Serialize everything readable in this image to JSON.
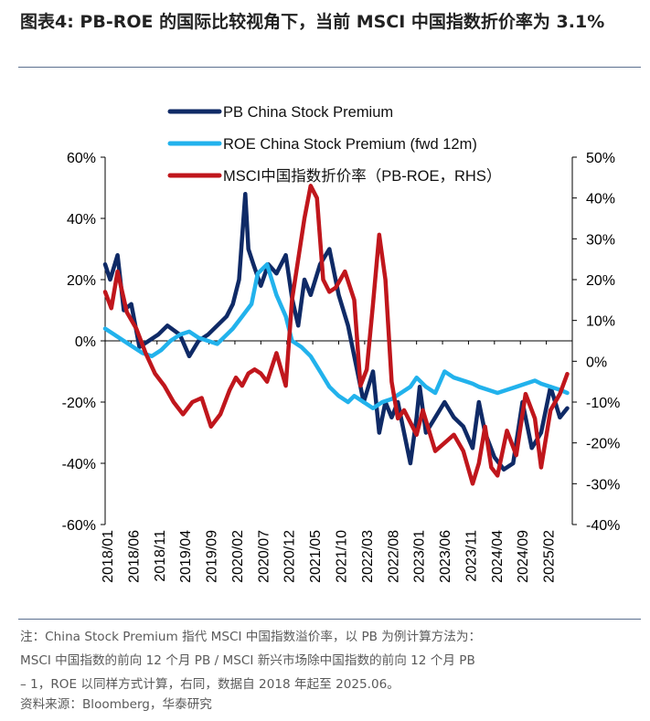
{
  "header": {
    "title": "图表4: PB-ROE 的国际比较视角下，当前 MSCI 中国指数折价率为 3.1%"
  },
  "chart_data": {
    "type": "line",
    "title": "",
    "x_tick_labels": [
      "2018/01",
      "2018/06",
      "2018/11",
      "2019/04",
      "2019/09",
      "2020/02",
      "2020/07",
      "2020/12",
      "2021/05",
      "2021/10",
      "2022/03",
      "2022/08",
      "2023/01",
      "2023/06",
      "2023/11",
      "2024/04",
      "2024/09",
      "2025/02"
    ],
    "x_range": [
      2018.0,
      2025.5
    ],
    "y_left": {
      "min": -60,
      "max": 60,
      "step": 20,
      "tick_labels": [
        "60%",
        "40%",
        "20%",
        "0%",
        "-20%",
        "-40%",
        "-60%"
      ]
    },
    "y_right": {
      "min": -40,
      "max": 50,
      "step": 10,
      "tick_labels": [
        "50%",
        "40%",
        "30%",
        "20%",
        "10%",
        "0%",
        "-10%",
        "-20%",
        "-30%",
        "-40%"
      ]
    },
    "legend_position": "top-left",
    "series": [
      {
        "name": "PB China Stock Premium",
        "axis": "left",
        "color": "#0f2a66",
        "x": [
          2018.0,
          2018.08,
          2018.2,
          2018.3,
          2018.42,
          2018.55,
          2018.7,
          2018.85,
          2019.0,
          2019.2,
          2019.35,
          2019.5,
          2019.65,
          2019.8,
          2019.95,
          2020.05,
          2020.15,
          2020.25,
          2020.3,
          2020.38,
          2020.5,
          2020.62,
          2020.75,
          2020.9,
          2021.0,
          2021.1,
          2021.2,
          2021.3,
          2021.45,
          2021.6,
          2021.75,
          2021.9,
          2022.0,
          2022.15,
          2022.3,
          2022.4,
          2022.5,
          2022.6,
          2022.7,
          2022.8,
          2022.9,
          2023.0,
          2023.05,
          2023.15,
          2023.3,
          2023.45,
          2023.6,
          2023.75,
          2023.9,
          2024.0,
          2024.1,
          2024.25,
          2024.4,
          2024.55,
          2024.7,
          2024.85,
          2025.0,
          2025.15,
          2025.3,
          2025.42
        ],
        "y": [
          25,
          20,
          28,
          10,
          12,
          -2,
          0,
          2,
          5,
          2,
          -5,
          0,
          2,
          5,
          8,
          12,
          20,
          48,
          30,
          25,
          18,
          25,
          22,
          28,
          14,
          5,
          20,
          15,
          25,
          30,
          15,
          5,
          -5,
          -20,
          -10,
          -30,
          -20,
          -25,
          -20,
          -30,
          -40,
          -25,
          -15,
          -30,
          -25,
          -20,
          -25,
          -28,
          -35,
          -20,
          -30,
          -38,
          -42,
          -40,
          -20,
          -35,
          -30,
          -15,
          -25,
          -22
        ]
      },
      {
        "name": "ROE China Stock Premium (fwd 12m)",
        "axis": "left",
        "color": "#22b2ec",
        "x": [
          2018.0,
          2018.15,
          2018.3,
          2018.45,
          2018.6,
          2018.75,
          2018.9,
          2019.05,
          2019.2,
          2019.35,
          2019.5,
          2019.65,
          2019.8,
          2019.95,
          2020.05,
          2020.2,
          2020.35,
          2020.45,
          2020.6,
          2020.75,
          2020.9,
          2021.0,
          2021.15,
          2021.3,
          2021.45,
          2021.6,
          2021.75,
          2021.9,
          2022.0,
          2022.15,
          2022.3,
          2022.45,
          2022.6,
          2022.75,
          2022.9,
          2023.0,
          2023.15,
          2023.3,
          2023.45,
          2023.6,
          2023.75,
          2023.9,
          2024.0,
          2024.15,
          2024.3,
          2024.45,
          2024.6,
          2024.75,
          2024.9,
          2025.0,
          2025.15,
          2025.3,
          2025.42
        ],
        "y": [
          4,
          2,
          0,
          -2,
          -4,
          -5,
          -3,
          0,
          2,
          3,
          1,
          0,
          -1,
          2,
          4,
          8,
          12,
          22,
          25,
          15,
          8,
          0,
          -2,
          -5,
          -10,
          -15,
          -18,
          -20,
          -18,
          -20,
          -22,
          -20,
          -19,
          -17,
          -15,
          -12,
          -15,
          -17,
          -10,
          -12,
          -13,
          -14,
          -15,
          -16,
          -17,
          -16,
          -15,
          -14,
          -13,
          -14,
          -15,
          -16,
          -17
        ]
      },
      {
        "name": "MSCI中国指数折价率（PB-ROE，RHS）",
        "axis": "right",
        "color": "#c0161c",
        "x": [
          2018.0,
          2018.1,
          2018.2,
          2018.35,
          2018.5,
          2018.65,
          2018.8,
          2018.95,
          2019.1,
          2019.25,
          2019.4,
          2019.55,
          2019.7,
          2019.85,
          2020.0,
          2020.1,
          2020.2,
          2020.3,
          2020.4,
          2020.5,
          2020.6,
          2020.75,
          2020.9,
          2021.0,
          2021.1,
          2021.2,
          2021.3,
          2021.4,
          2021.5,
          2021.6,
          2021.7,
          2021.85,
          2022.0,
          2022.1,
          2022.2,
          2022.3,
          2022.4,
          2022.5,
          2022.6,
          2022.7,
          2022.8,
          2022.9,
          2023.0,
          2023.1,
          2023.2,
          2023.3,
          2023.45,
          2023.6,
          2023.75,
          2023.9,
          2024.0,
          2024.1,
          2024.2,
          2024.3,
          2024.45,
          2024.6,
          2024.75,
          2024.9,
          2025.0,
          2025.15,
          2025.3,
          2025.42
        ],
        "y": [
          17,
          13,
          22,
          12,
          8,
          2,
          -3,
          -6,
          -10,
          -13,
          -10,
          -9,
          -16,
          -13,
          -7,
          -4,
          -6,
          -3,
          -2,
          -3,
          -5,
          2,
          -6,
          15,
          25,
          35,
          43,
          40,
          20,
          17,
          18,
          22,
          15,
          -6,
          -2,
          14,
          31,
          20,
          -5,
          -14,
          -12,
          -15,
          -18,
          -12,
          -17,
          -22,
          -20,
          -18,
          -22,
          -30,
          -25,
          -16,
          -26,
          -28,
          -17,
          -23,
          -8,
          -14,
          -26,
          -12,
          -8,
          -3.1
        ]
      }
    ]
  },
  "footnote": {
    "line1": "注：China Stock Premium 指代 MSCI 中国指数溢价率，以 PB 为例计算方法为：",
    "line2": "MSCI 中国指数的前向 12 个月 PB / MSCI 新兴市场除中国指数的前向 12 个月 PB",
    "line3": "– 1，ROE 以同样方式计算，右同，数据自 2018 年起至 2025.06。"
  },
  "source": "资料来源：Bloomberg，华泰研究"
}
